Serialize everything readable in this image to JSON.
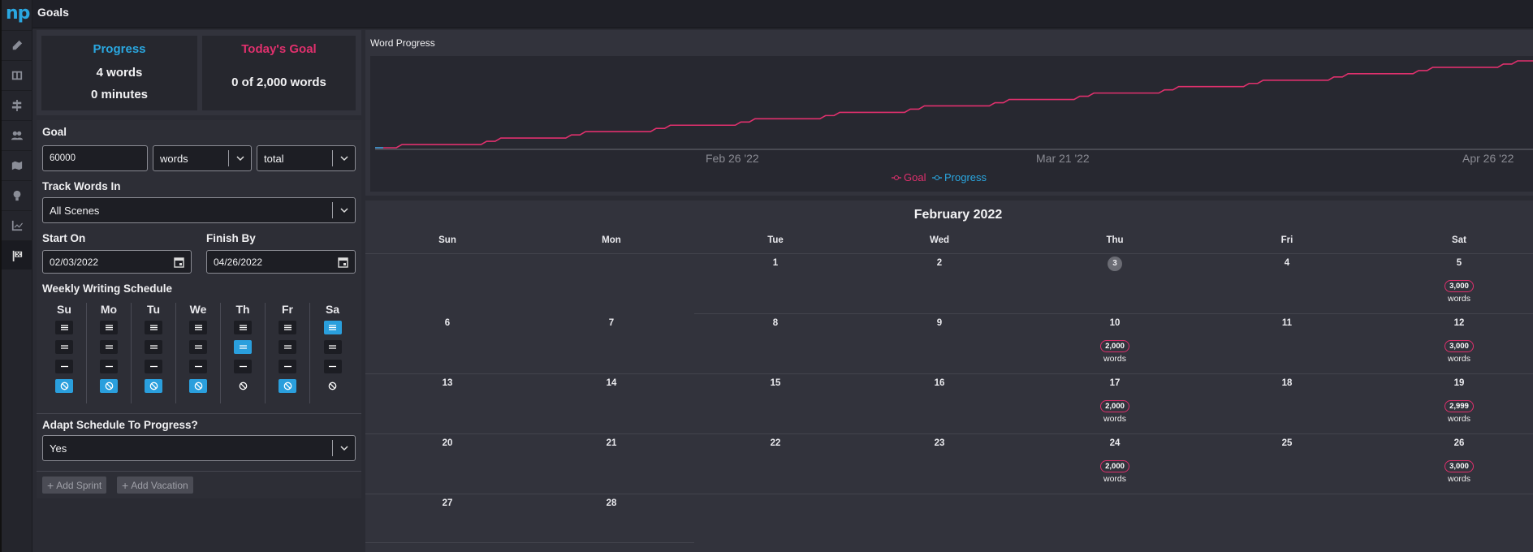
{
  "app": {
    "logo": "np",
    "title": "Goals"
  },
  "rail_icons": [
    "pen-icon",
    "book-icon",
    "signpost-icon",
    "people-icon",
    "map-icon",
    "lightbulb-icon",
    "chart-icon",
    "flag-icon"
  ],
  "stats": {
    "progress_title": "Progress",
    "progress_words": "4 words",
    "progress_minutes": "0 minutes",
    "today_title": "Today's Goal",
    "today_value": "0 of 2,000 words"
  },
  "colors": {
    "progress": "#2aa7e0",
    "goal": "#e0306d",
    "accent": "#2a9fdd"
  },
  "goal": {
    "label": "Goal",
    "amount": "60000",
    "unit": "words",
    "scope": "total",
    "track_label": "Track Words In",
    "track_value": "All Scenes",
    "start_label": "Start On",
    "start_value": "02/03/2022",
    "finish_label": "Finish By",
    "finish_value": "04/26/2022"
  },
  "schedule": {
    "label": "Weekly Writing Schedule",
    "days": [
      {
        "name": "Su",
        "selected": 3
      },
      {
        "name": "Mo",
        "selected": 3
      },
      {
        "name": "Tu",
        "selected": 3
      },
      {
        "name": "We",
        "selected": 3
      },
      {
        "name": "Th",
        "selected": 1
      },
      {
        "name": "Fr",
        "selected": 3
      },
      {
        "name": "Sa",
        "selected": 0
      }
    ]
  },
  "adapt": {
    "label": "Adapt Schedule To Progress?",
    "value": "Yes"
  },
  "buttons": {
    "add_sprint": "Add Sprint",
    "add_vacation": "Add Vacation"
  },
  "chart_data": {
    "type": "line",
    "title": "Word Progress",
    "x_tick_labels": [
      "Feb 26 '22",
      "Mar 21 '22",
      "Apr 26 '22"
    ],
    "series": [
      {
        "name": "Goal",
        "color": "#e0306d",
        "values": [
          0,
          0,
          1000,
          1000,
          1000,
          1000,
          1000,
          1000,
          2000,
          3000,
          3000,
          3000,
          3000,
          3000,
          4000,
          5000,
          5000,
          5000,
          5000,
          5000,
          6000,
          7000,
          7000,
          7000,
          7000,
          7000,
          8000,
          8999,
          8999,
          8999,
          8999,
          8999,
          9999,
          10999,
          10999,
          10999,
          10999,
          10999,
          11999,
          12999,
          12999,
          12999,
          12999,
          12999,
          13999,
          14999,
          14999,
          14999,
          14999,
          14999,
          15999,
          16999,
          16999,
          16999,
          16999,
          16999,
          17999,
          18999,
          18999,
          18999,
          18999,
          18999,
          19999,
          20999,
          20999,
          20999,
          20999,
          20999,
          21999,
          22999,
          22999,
          22999,
          22999,
          22999,
          23999,
          24999,
          24999,
          24999,
          24999,
          24999,
          25999,
          26999,
          26999
        ]
      },
      {
        "name": "Progress",
        "color": "#2aa7e0",
        "values": [
          4
        ]
      }
    ],
    "legend": "bottom-center",
    "grid": false
  },
  "calendar": {
    "month": "February 2022",
    "dow": [
      "Sun",
      "Mon",
      "Tue",
      "Wed",
      "Thu",
      "Fri",
      "Sat"
    ],
    "today": 3,
    "words_label": "words",
    "weeks": [
      [
        null,
        null,
        {
          "d": "1"
        },
        {
          "d": "2"
        },
        {
          "d": "3"
        },
        {
          "d": "4"
        },
        {
          "d": "5",
          "g": "3,000"
        }
      ],
      [
        {
          "d": "6"
        },
        {
          "d": "7"
        },
        {
          "d": "8"
        },
        {
          "d": "9"
        },
        {
          "d": "10",
          "g": "2,000"
        },
        {
          "d": "11"
        },
        {
          "d": "12",
          "g": "3,000"
        }
      ],
      [
        {
          "d": "13"
        },
        {
          "d": "14"
        },
        {
          "d": "15"
        },
        {
          "d": "16"
        },
        {
          "d": "17",
          "g": "2,000"
        },
        {
          "d": "18"
        },
        {
          "d": "19",
          "g": "2,999"
        }
      ],
      [
        {
          "d": "20"
        },
        {
          "d": "21"
        },
        {
          "d": "22"
        },
        {
          "d": "23"
        },
        {
          "d": "24",
          "g": "2,000"
        },
        {
          "d": "25"
        },
        {
          "d": "26",
          "g": "3,000"
        }
      ],
      [
        {
          "d": "27"
        },
        {
          "d": "28"
        },
        null,
        null,
        null,
        null,
        null
      ]
    ]
  }
}
